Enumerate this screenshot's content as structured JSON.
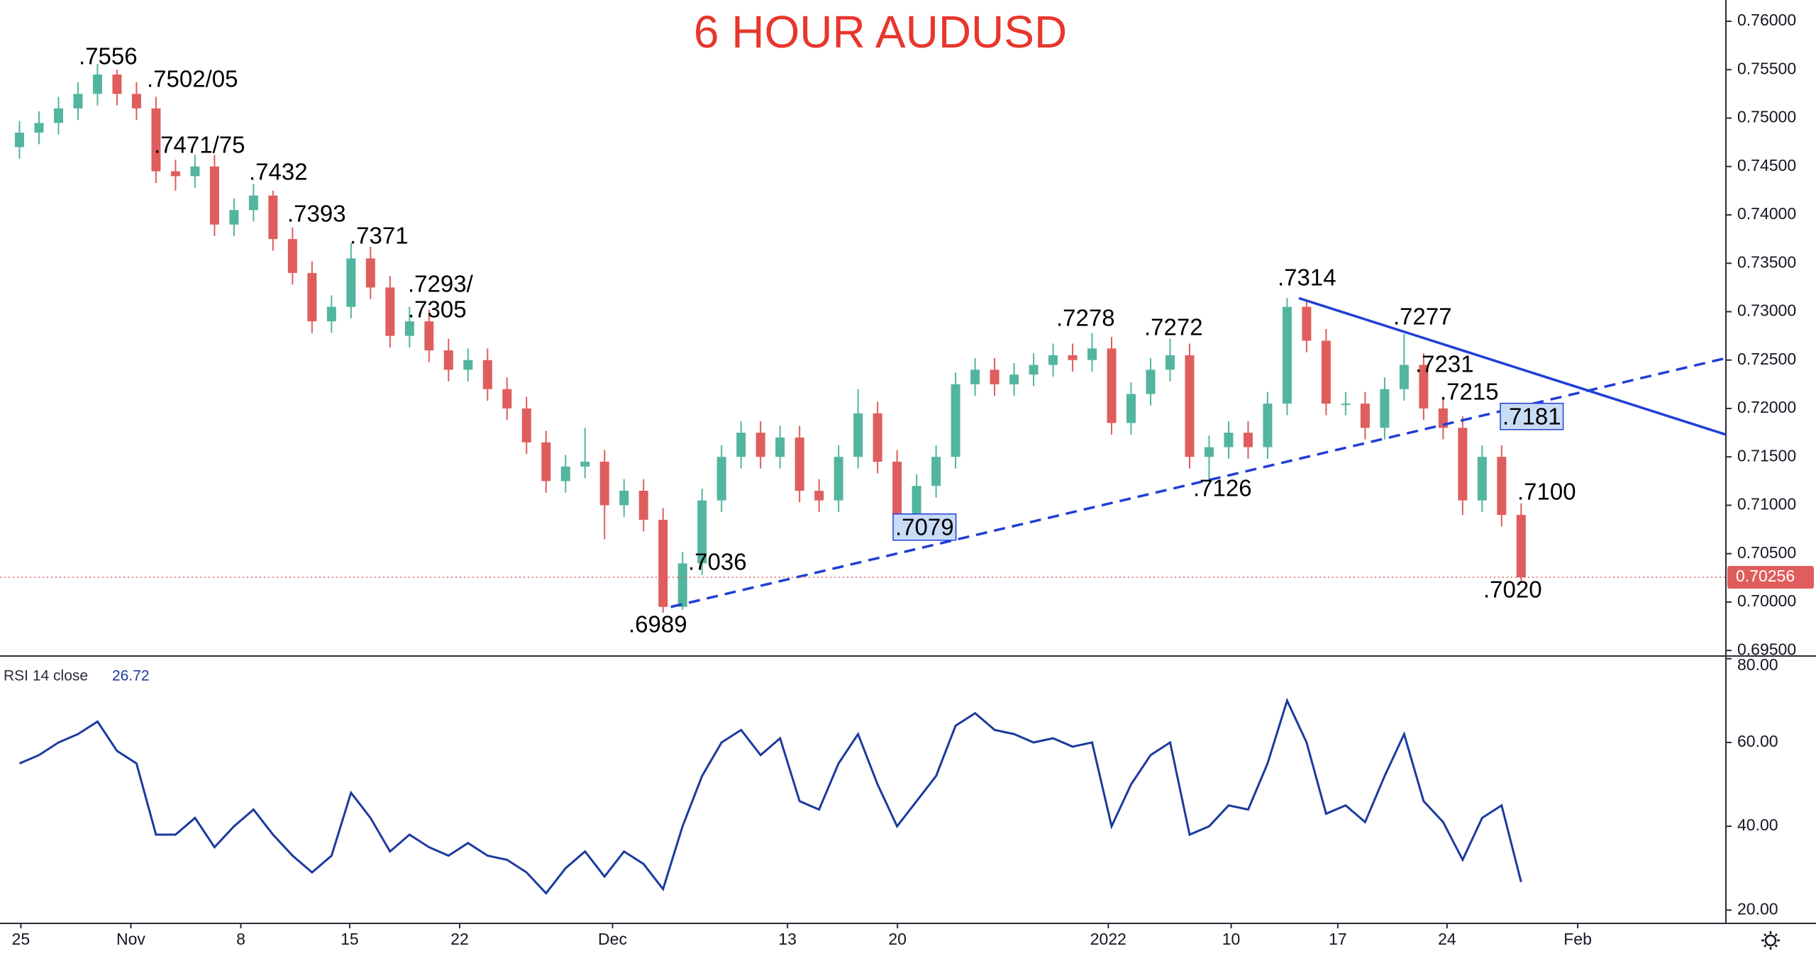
{
  "chart_data": [
    {
      "type": "candlestick",
      "title": "6 HOUR AUDUSD",
      "title_color": "#e8362c",
      "up_color": "#53b59f",
      "down_color": "#e05d5d",
      "xlim": [
        -1,
        87.5
      ],
      "ylim": [
        0.6945,
        0.7622
      ],
      "xticks": [
        {
          "value": 0.07,
          "label": "25"
        },
        {
          "value": 5.71,
          "label": "Nov"
        },
        {
          "value": 11.35,
          "label": "8"
        },
        {
          "value": 16.93,
          "label": "15"
        },
        {
          "value": 22.57,
          "label": "22"
        },
        {
          "value": 30.41,
          "label": "Dec"
        },
        {
          "value": 39.38,
          "label": "13"
        },
        {
          "value": 45.02,
          "label": "20"
        },
        {
          "value": 55.83,
          "label": "2022"
        },
        {
          "value": 62.13,
          "label": "10"
        },
        {
          "value": 67.6,
          "label": "17"
        },
        {
          "value": 73.2,
          "label": "24"
        },
        {
          "value": 79.9,
          "label": "Feb"
        }
      ],
      "yticks": [
        {
          "value": 0.695,
          "label": "0.69500"
        },
        {
          "value": 0.7,
          "label": "0.70000"
        },
        {
          "value": 0.705,
          "label": "0.70500"
        },
        {
          "value": 0.71,
          "label": "0.71000"
        },
        {
          "value": 0.715,
          "label": "0.71500"
        },
        {
          "value": 0.72,
          "label": "0.72000"
        },
        {
          "value": 0.725,
          "label": "0.72500"
        },
        {
          "value": 0.73,
          "label": "0.73000"
        },
        {
          "value": 0.735,
          "label": "0.73500"
        },
        {
          "value": 0.74,
          "label": "0.74000"
        },
        {
          "value": 0.745,
          "label": "0.74500"
        },
        {
          "value": 0.75,
          "label": "0.75000"
        },
        {
          "value": 0.755,
          "label": "0.75500"
        },
        {
          "value": 0.76,
          "label": "0.76000"
        }
      ],
      "open": [
        0.747,
        0.7485,
        0.7495,
        0.751,
        0.7525,
        0.7545,
        0.7525,
        0.751,
        0.7445,
        0.744,
        0.745,
        0.739,
        0.7405,
        0.742,
        0.7375,
        0.734,
        0.729,
        0.7305,
        0.7355,
        0.7325,
        0.7275,
        0.729,
        0.726,
        0.724,
        0.725,
        0.722,
        0.72,
        0.7165,
        0.7125,
        0.714,
        0.7145,
        0.71,
        0.7115,
        0.7085,
        0.6995,
        0.704,
        0.7105,
        0.715,
        0.7175,
        0.715,
        0.717,
        0.7115,
        0.7105,
        0.715,
        0.7195,
        0.7145,
        0.709,
        0.712,
        0.715,
        0.7225,
        0.724,
        0.7225,
        0.7235,
        0.7245,
        0.7255,
        0.725,
        0.7262,
        0.7185,
        0.7215,
        0.724,
        0.7255,
        0.715,
        0.716,
        0.7175,
        0.716,
        0.7205,
        0.7305,
        0.727,
        0.7205,
        0.7205,
        0.718,
        0.722,
        0.7245,
        0.72,
        0.718,
        0.7105,
        0.715,
        0.709
      ],
      "high": [
        0.7497,
        0.7507,
        0.7522,
        0.7537,
        0.7556,
        0.755,
        0.7537,
        0.7522,
        0.7457,
        0.7462,
        0.7462,
        0.7417,
        0.7432,
        0.7425,
        0.7387,
        0.7352,
        0.7317,
        0.7371,
        0.7367,
        0.7337,
        0.7305,
        0.7302,
        0.7272,
        0.7262,
        0.7262,
        0.7232,
        0.7212,
        0.7177,
        0.7152,
        0.718,
        0.7157,
        0.7127,
        0.7127,
        0.7097,
        0.7052,
        0.7117,
        0.7162,
        0.7187,
        0.7187,
        0.7182,
        0.7182,
        0.7127,
        0.7162,
        0.722,
        0.7207,
        0.7157,
        0.7132,
        0.7162,
        0.7237,
        0.7252,
        0.7252,
        0.7247,
        0.7257,
        0.7267,
        0.7267,
        0.7278,
        0.7274,
        0.7227,
        0.7252,
        0.7272,
        0.7267,
        0.7172,
        0.7187,
        0.7187,
        0.7217,
        0.7314,
        0.7312,
        0.7282,
        0.7217,
        0.7217,
        0.7232,
        0.7277,
        0.7257,
        0.7212,
        0.7192,
        0.7162,
        0.7162,
        0.7102
      ],
      "low": [
        0.7458,
        0.7473,
        0.7483,
        0.7498,
        0.7513,
        0.7513,
        0.7498,
        0.7433,
        0.7425,
        0.7428,
        0.7378,
        0.7378,
        0.7393,
        0.7363,
        0.7328,
        0.7278,
        0.7278,
        0.7293,
        0.7313,
        0.7263,
        0.7263,
        0.7248,
        0.7228,
        0.7228,
        0.7208,
        0.7188,
        0.7153,
        0.7113,
        0.7113,
        0.7128,
        0.7065,
        0.7088,
        0.7073,
        0.6989,
        0.6992,
        0.7028,
        0.7093,
        0.7138,
        0.7138,
        0.7138,
        0.7103,
        0.7093,
        0.7093,
        0.7138,
        0.7133,
        0.7079,
        0.708,
        0.7108,
        0.7138,
        0.7213,
        0.7213,
        0.7213,
        0.7223,
        0.7233,
        0.7238,
        0.7238,
        0.7173,
        0.7173,
        0.7203,
        0.7228,
        0.7138,
        0.7126,
        0.7148,
        0.7148,
        0.7148,
        0.7193,
        0.7258,
        0.7193,
        0.7193,
        0.7168,
        0.7168,
        0.7208,
        0.7188,
        0.7168,
        0.709,
        0.7093,
        0.7078,
        0.702
      ],
      "close": [
        0.7485,
        0.7495,
        0.751,
        0.7525,
        0.7545,
        0.7525,
        0.751,
        0.7445,
        0.744,
        0.745,
        0.739,
        0.7405,
        0.742,
        0.7375,
        0.734,
        0.729,
        0.7305,
        0.7355,
        0.7325,
        0.7275,
        0.729,
        0.726,
        0.724,
        0.725,
        0.722,
        0.72,
        0.7165,
        0.7125,
        0.714,
        0.7145,
        0.71,
        0.7115,
        0.7085,
        0.6995,
        0.704,
        0.7105,
        0.715,
        0.7175,
        0.715,
        0.717,
        0.7115,
        0.7105,
        0.715,
        0.7195,
        0.7145,
        0.709,
        0.712,
        0.715,
        0.7225,
        0.724,
        0.7225,
        0.7235,
        0.7245,
        0.7255,
        0.725,
        0.7262,
        0.7185,
        0.7215,
        0.724,
        0.7255,
        0.715,
        0.716,
        0.7175,
        0.716,
        0.7205,
        0.7305,
        0.727,
        0.7205,
        0.7205,
        0.718,
        0.722,
        0.7245,
        0.72,
        0.718,
        0.7105,
        0.715,
        0.709,
        0.70256
      ],
      "trendlines": [
        {
          "style": "solid",
          "color": "#1f3fd6",
          "x": [
            65.6,
            87.5
          ],
          "y": [
            0.7314,
            0.7173
          ]
        },
        {
          "style": "dashed",
          "color": "#1f3fd6",
          "x": [
            33.4,
            87.5
          ],
          "y": [
            0.6995,
            0.7252
          ]
        }
      ],
      "annotations": [
        {
          "text": ".7556"
        },
        {
          "text": ".7502/05"
        },
        {
          "text": ".7471/75"
        },
        {
          "text": ".7432"
        },
        {
          "text": ".7393"
        },
        {
          "text": ".7371"
        },
        {
          "text": ".7293/"
        },
        {
          "text": ".7305"
        },
        {
          "text": ".6989"
        },
        {
          "text": ".7036"
        },
        {
          "text": ".7079",
          "boxed": true
        },
        {
          "text": ".7278"
        },
        {
          "text": ".7272"
        },
        {
          "text": ".7126"
        },
        {
          "text": ".7314"
        },
        {
          "text": ".7277"
        },
        {
          "text": ".7231"
        },
        {
          "text": ".7215"
        },
        {
          "text": ".7181",
          "boxed": true
        },
        {
          "text": ".7100"
        },
        {
          "text": ".7020"
        }
      ],
      "last_price_color": "#e05d5d"
    },
    {
      "type": "line",
      "name": "RSI 14 close",
      "color": "#1c3a9e",
      "xlim": [
        -1,
        87.5
      ],
      "ylim": [
        17,
        80.3
      ],
      "yticks": [
        {
          "value": 20,
          "label": "20.00"
        },
        {
          "value": 40,
          "label": "40.00"
        },
        {
          "value": 60,
          "label": "60.00"
        },
        {
          "value": 80,
          "label": "80.00"
        }
      ],
      "values": [
        55,
        57,
        60,
        62,
        65,
        58,
        55,
        38,
        38,
        42,
        35,
        40,
        44,
        38,
        33,
        29,
        33,
        48,
        42,
        34,
        38,
        35,
        33,
        36,
        33,
        32,
        29,
        24,
        30,
        34,
        28,
        34,
        31,
        25,
        40,
        52,
        60,
        63,
        57,
        61,
        46,
        44,
        55,
        62,
        50,
        40,
        46,
        52,
        64,
        67,
        63,
        62,
        60,
        61,
        59,
        60,
        40,
        50,
        57,
        60,
        38,
        40,
        45,
        44,
        55,
        70,
        60,
        43,
        45,
        41,
        52,
        62,
        46,
        41,
        32,
        42,
        45,
        26.72
      ]
    }
  ]
}
